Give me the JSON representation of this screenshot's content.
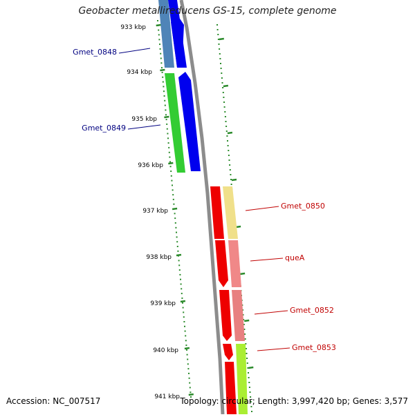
{
  "title": "Geobacter metallireducens GS-15, complete genome",
  "accession": "Accession: NC_007517",
  "topology": "Topology: circular; Length: 3,997,420 bp; Genes: 3,577",
  "colors": {
    "backbone": "#8c8c8c",
    "tick": "#2a8a2a",
    "label_left": "#000080",
    "label_right": "#c00000"
  },
  "scale_labels": [
    "933 kbp",
    "934 kbp",
    "935 kbp",
    "936 kbp",
    "937 kbp",
    "938 kbp",
    "939 kbp",
    "940 kbp",
    "941 kbp"
  ],
  "left_genes": [
    {
      "label": "Gmet_0848",
      "cog_color": "#4f84b8",
      "cds_color": "#0000ee"
    },
    {
      "label": "Gmet_0849",
      "cog_color": "#33cc33",
      "cds_color": "#0000ee"
    }
  ],
  "right_genes": [
    {
      "label": "Gmet_0850",
      "cog_color": "#f0e08a",
      "cds_color": "#ee0000"
    },
    {
      "label": "queA",
      "cog_color": "#f08888",
      "cds_color": "#ee0000"
    },
    {
      "label": "Gmet_0852",
      "cog_color": "#e88080",
      "cds_color": "#ee0000"
    },
    {
      "label": "Gmet_0853",
      "cog_color": "#aaee33",
      "cds_color": "#ee0000"
    }
  ]
}
